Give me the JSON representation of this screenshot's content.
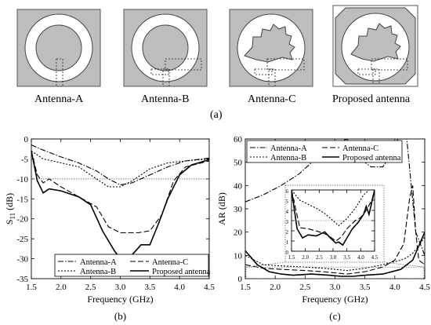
{
  "antennas": {
    "labels": [
      "Antenna-A",
      "Antenna-B",
      "Antenna-C",
      "Proposed antenna"
    ],
    "caption": "(a)"
  },
  "chart_data": [
    {
      "type": "line",
      "ylabel_main": "S",
      "ylabel_sub": "11",
      "ylabel_unit": " (dB)",
      "xlabel": "Frequency (GHz)",
      "caption": "(b)",
      "xlim": [
        1.5,
        4.5
      ],
      "ylim": [
        -35,
        0
      ],
      "xticks": [
        "1.5",
        "2.0",
        "2.5",
        "3.0",
        "3.5",
        "4.0",
        "4.5"
      ],
      "yticks": [
        "0",
        "-5",
        "-10",
        "-15",
        "-20",
        "-25",
        "-30",
        "-35"
      ],
      "reference_line": -10,
      "legend": [
        "Antenna-A",
        "Antenna-C",
        "Antenna-B",
        "Proposed antenna"
      ],
      "series": [
        {
          "name": "Antenna-A",
          "style": "dashdot",
          "x": [
            1.5,
            1.7,
            2.0,
            2.3,
            2.6,
            2.8,
            3.0,
            3.2,
            3.5,
            3.8,
            4.1,
            4.5
          ],
          "y": [
            -1.5,
            -2.8,
            -4.5,
            -6,
            -8,
            -10,
            -11.5,
            -11,
            -9,
            -7,
            -5.5,
            -4.8
          ]
        },
        {
          "name": "Antenna-B",
          "style": "dotted",
          "x": [
            1.5,
            1.7,
            2.0,
            2.3,
            2.6,
            2.8,
            3.0,
            3.2,
            3.5,
            3.8,
            4.1,
            4.5
          ],
          "y": [
            -3,
            -5,
            -6,
            -7,
            -10,
            -12,
            -12,
            -10.5,
            -7.5,
            -6,
            -5.5,
            -5
          ]
        },
        {
          "name": "Antenna-C",
          "style": "dashed",
          "x": [
            1.5,
            1.6,
            1.7,
            1.8,
            2.0,
            2.3,
            2.6,
            2.8,
            3.0,
            3.3,
            3.5,
            3.7,
            3.9,
            4.1,
            4.5
          ],
          "y": [
            -3,
            -9,
            -11,
            -10,
            -12,
            -14.5,
            -17,
            -22,
            -23.5,
            -23.5,
            -23,
            -19,
            -10.5,
            -7,
            -5.5
          ]
        },
        {
          "name": "Proposed antenna",
          "style": "solid",
          "x": [
            1.5,
            1.6,
            1.7,
            1.8,
            2.0,
            2.3,
            2.5,
            2.7,
            2.9,
            3.0,
            3.2,
            3.35,
            3.5,
            3.65,
            3.8,
            4.0,
            4.2,
            4.5
          ],
          "y": [
            -3,
            -10.5,
            -13.5,
            -12.5,
            -13,
            -14.5,
            -16.5,
            -23,
            -28,
            -30,
            -29,
            -26.5,
            -26.5,
            -21,
            -15,
            -9,
            -6.5,
            -5.2
          ]
        }
      ]
    },
    {
      "type": "line",
      "ylabel": "AR (dB)",
      "xlabel": "Frequency (GHz)",
      "caption": "(c)",
      "xlim": [
        1.5,
        4.5
      ],
      "ylim": [
        0,
        60
      ],
      "xticks": [
        "1.5",
        "2.0",
        "2.5",
        "3.0",
        "3.5",
        "4.0",
        "4.5"
      ],
      "yticks": [
        "0",
        "10",
        "20",
        "30",
        "40",
        "50",
        "60"
      ],
      "legend": [
        "Antenna-A",
        "Antenna-C",
        "Antenna-B",
        "Proposed antenna"
      ],
      "series": [
        {
          "name": "Antenna-A",
          "style": "dashdot",
          "x": [
            1.5,
            1.8,
            2.1,
            2.4,
            2.7,
            3.0,
            3.2,
            3.4,
            3.6,
            3.8,
            3.95,
            4.05,
            4.2,
            4.35,
            4.5
          ],
          "y": [
            33,
            36,
            40,
            45,
            52,
            58,
            60,
            52,
            48,
            48,
            54,
            60,
            60,
            20,
            10
          ]
        },
        {
          "name": "Antenna-B",
          "style": "dotted",
          "x": [
            1.5,
            1.8,
            2.1,
            2.5,
            2.8,
            3.0,
            3.2,
            3.5,
            3.8,
            4.1,
            4.2,
            4.3,
            4.4,
            4.5
          ],
          "y": [
            10,
            6,
            5.5,
            5,
            4.5,
            4,
            3.5,
            4.5,
            6,
            8,
            9,
            11,
            14,
            18
          ]
        },
        {
          "name": "Antenna-C",
          "style": "dashed",
          "x": [
            1.5,
            1.8,
            2.1,
            2.5,
            2.8,
            3.0,
            3.2,
            3.5,
            3.8,
            4.0,
            4.15,
            4.25,
            4.3,
            4.35,
            4.4,
            4.5
          ],
          "y": [
            6,
            4.5,
            4,
            3.5,
            3,
            2.5,
            2,
            3,
            5,
            8,
            15,
            35,
            40,
            20,
            8,
            6
          ]
        },
        {
          "name": "Proposed antenna",
          "style": "solid",
          "x": [
            1.5,
            1.7,
            1.9,
            2.1,
            2.3,
            2.6,
            2.9,
            3.1,
            3.3,
            3.5,
            3.8,
            4.1,
            4.3,
            4.5
          ],
          "y": [
            12,
            6,
            3,
            2,
            1.5,
            2,
            1.5,
            1,
            1,
            1.5,
            2,
            4,
            8,
            20
          ]
        }
      ],
      "inset": {
        "xticks": [
          "1.5",
          "2.0",
          "2.5",
          "3.0",
          "3.5",
          "4.0",
          "4.5"
        ],
        "yticks": [
          "0",
          "1",
          "2",
          "3",
          "4",
          "5",
          "6"
        ],
        "xlim": [
          1.5,
          4.5
        ],
        "ylim": [
          0,
          6
        ],
        "reference_line": 3,
        "series": [
          {
            "name": "Antenna-B",
            "style": "dotted",
            "x": [
              1.5,
              1.8,
              2.1,
              2.4,
              2.7,
              3.0,
              3.2,
              3.5,
              3.8,
              4.1,
              4.3
            ],
            "y": [
              6,
              5,
              4.6,
              4.2,
              3.7,
              3,
              2.5,
              3.2,
              4.2,
              5.5,
              6
            ]
          },
          {
            "name": "Antenna-C",
            "style": "dashed",
            "x": [
              1.5,
              1.8,
              2.1,
              2.5,
              2.8,
              3.0,
              3.1,
              3.3,
              3.5,
              3.8,
              4.0,
              4.2,
              4.4,
              4.5
            ],
            "y": [
              6,
              2.3,
              2.2,
              1.9,
              1.6,
              1.2,
              1.0,
              1.4,
              2.2,
              3.0,
              3.3,
              4.0,
              5,
              6
            ]
          },
          {
            "name": "Proposed antenna",
            "style": "solid",
            "x": [
              1.5,
              1.7,
              1.9,
              2.1,
              2.4,
              2.7,
              2.9,
              3.1,
              3.2,
              3.35,
              3.5,
              3.7,
              3.9,
              4.1,
              4.2,
              4.3,
              4.5
            ],
            "y": [
              6,
              2.2,
              1.3,
              1.6,
              1.5,
              1.9,
              1.3,
              0.8,
              0.9,
              0.6,
              1.3,
              2.2,
              2.8,
              3.6,
              4.4,
              3.6,
              6
            ]
          }
        ]
      }
    }
  ]
}
